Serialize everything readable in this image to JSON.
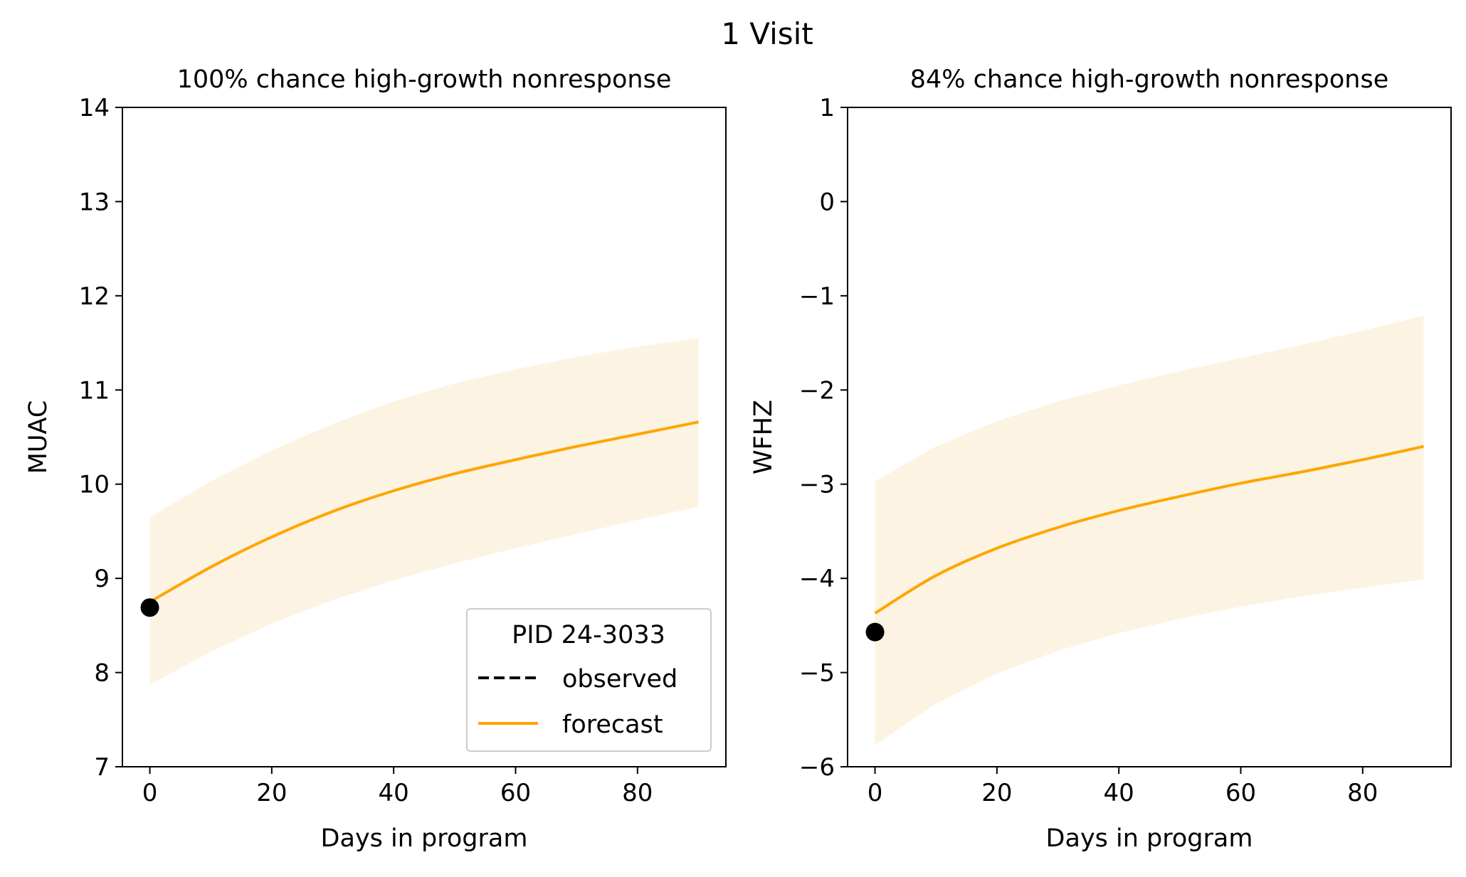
{
  "figure_title": "1 Visit",
  "colors": {
    "forecast": "#ffa500",
    "band": "#fdf3e3",
    "observed_point": "#000000",
    "axes": "#000000",
    "legend_border": "#cccccc"
  },
  "legend": {
    "title": "PID 24-3033",
    "items": [
      {
        "label": "observed",
        "style": "dashed",
        "color": "#000000"
      },
      {
        "label": "forecast",
        "style": "solid",
        "color": "#ffa500"
      }
    ],
    "placement": "lower-right of left panel"
  },
  "chart_data": [
    {
      "type": "line",
      "title": "100% chance high-growth nonresponse",
      "xlabel": "Days in program",
      "ylabel": "MUAC",
      "xlim": [
        -4.5,
        94.5
      ],
      "ylim": [
        7,
        14
      ],
      "xticks": [
        0,
        20,
        40,
        60,
        80
      ],
      "yticks": [
        7,
        8,
        9,
        10,
        11,
        12,
        13,
        14
      ],
      "grid": false,
      "series": [
        {
          "name": "forecast",
          "x": [
            0,
            10,
            20,
            30,
            40,
            50,
            60,
            70,
            80,
            90
          ],
          "y": [
            8.75,
            9.12,
            9.44,
            9.71,
            9.93,
            10.11,
            10.26,
            10.4,
            10.53,
            10.66
          ]
        }
      ],
      "band": {
        "x": [
          0,
          10,
          20,
          30,
          40,
          50,
          60,
          70,
          80,
          90
        ],
        "lower": [
          7.87,
          8.22,
          8.52,
          8.77,
          8.98,
          9.16,
          9.32,
          9.47,
          9.62,
          9.76
        ],
        "upper": [
          9.65,
          10.03,
          10.36,
          10.64,
          10.88,
          11.07,
          11.22,
          11.35,
          11.46,
          11.55
        ]
      },
      "observed_points": {
        "x": [
          0
        ],
        "y": [
          8.69
        ]
      }
    },
    {
      "type": "line",
      "title": "84% chance high-growth nonresponse",
      "xlabel": "Days in program",
      "ylabel": "WFHZ",
      "xlim": [
        -4.5,
        94.5
      ],
      "ylim": [
        -6,
        1
      ],
      "xticks": [
        0,
        20,
        40,
        60,
        80
      ],
      "yticks": [
        -6,
        -5,
        -4,
        -3,
        -2,
        -1,
        0,
        1
      ],
      "ytick_labels": [
        "−6",
        "−5",
        "−4",
        "−3",
        "−2",
        "−1",
        "0",
        "1"
      ],
      "grid": false,
      "series": [
        {
          "name": "forecast",
          "x": [
            0,
            10,
            20,
            30,
            40,
            50,
            60,
            70,
            80,
            90
          ],
          "y": [
            -4.37,
            -3.97,
            -3.68,
            -3.46,
            -3.28,
            -3.13,
            -2.99,
            -2.87,
            -2.74,
            -2.6
          ]
        }
      ],
      "band": {
        "x": [
          0,
          10,
          20,
          30,
          40,
          50,
          60,
          70,
          80,
          90
        ],
        "lower": [
          -5.77,
          -5.33,
          -5.01,
          -4.77,
          -4.58,
          -4.43,
          -4.3,
          -4.19,
          -4.1,
          -4.01
        ],
        "upper": [
          -2.97,
          -2.6,
          -2.33,
          -2.12,
          -1.95,
          -1.8,
          -1.66,
          -1.52,
          -1.37,
          -1.21
        ]
      },
      "observed_points": {
        "x": [
          0
        ],
        "y": [
          -4.57
        ]
      }
    }
  ]
}
